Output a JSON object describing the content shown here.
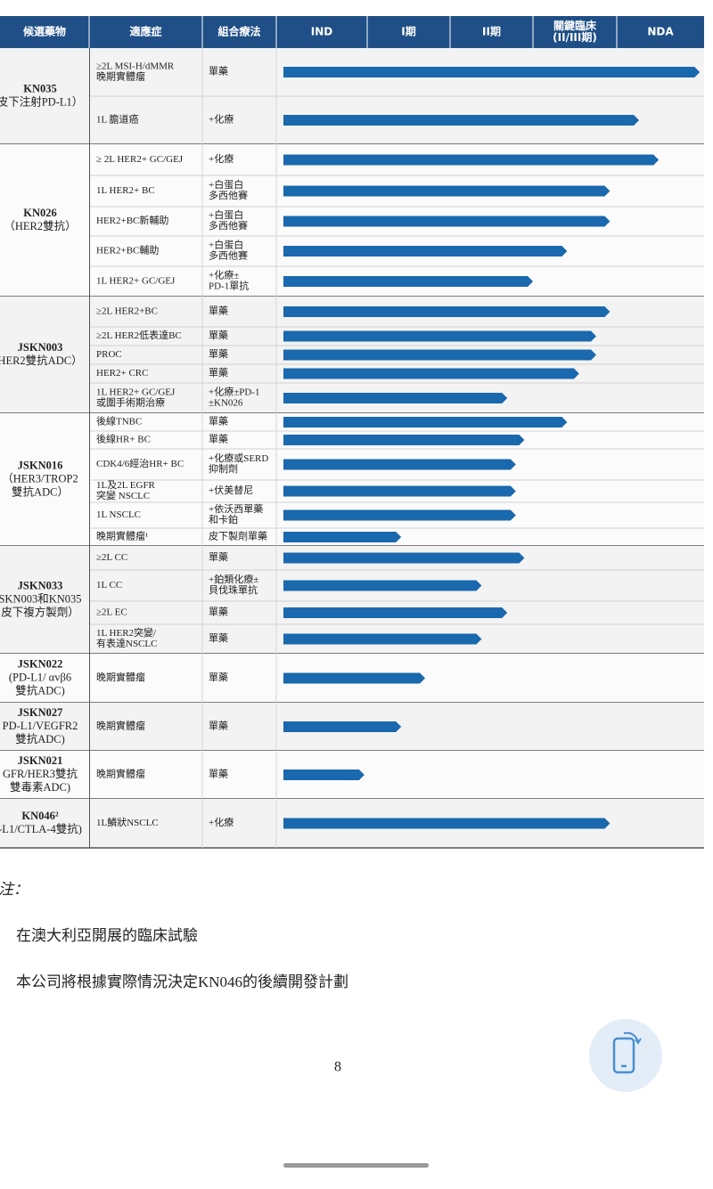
{
  "header": {
    "columns": [
      [
        "候選藥物"
      ],
      [
        "適應症"
      ],
      [
        "組合療法"
      ],
      [
        "IND"
      ],
      [
        "I期"
      ],
      [
        "II期"
      ],
      [
        "關鍵臨床",
        "(II/III期)"
      ],
      [
        "NDA"
      ]
    ]
  },
  "groups": [
    {
      "drug": [
        "KN035",
        "皮下注射PD-L1）"
      ],
      "rows": [
        {
          "indication": [
            "≥2L MSI-H/dMMR",
            "晚期實體瘤"
          ],
          "therapy": [
            "單藥"
          ],
          "progress": 4.95
        },
        {
          "indication": [
            "1L 膽道癌"
          ],
          "therapy": [
            "+化療"
          ],
          "progress": 4.24
        }
      ]
    },
    {
      "drug": [
        "KN026",
        "（HER2雙抗）"
      ],
      "rows": [
        {
          "indication": [
            "≥ 2L HER2+ GC/GEJ"
          ],
          "therapy": [
            "+化療"
          ],
          "progress": 4.47
        },
        {
          "indication": [
            "1L HER2+ BC"
          ],
          "therapy": [
            "+白蛋白",
            "多西他賽"
          ],
          "progress": 3.9
        },
        {
          "indication": [
            "HER2+BC新輔助"
          ],
          "therapy": [
            "+白蛋白",
            "多西他賽"
          ],
          "progress": 3.9
        },
        {
          "indication": [
            "HER2+BC輔助"
          ],
          "therapy": [
            "+白蛋白",
            "多西他賽"
          ],
          "progress": 3.4
        },
        {
          "indication": [
            "1L HER2+ GC/GEJ"
          ],
          "therapy": [
            "+化療±",
            "PD-1單抗"
          ],
          "progress": 3.0
        }
      ]
    },
    {
      "drug": [
        "JSKN003",
        "HER2雙抗ADC）"
      ],
      "rows": [
        {
          "indication": [
            "≥2L HER2+BC"
          ],
          "therapy": [
            "單藥"
          ],
          "progress": 3.9
        },
        {
          "indication": [
            "≥2L HER2低表達BC"
          ],
          "therapy": [
            "單藥"
          ],
          "progress": 3.74
        },
        {
          "indication": [
            "PROC"
          ],
          "therapy": [
            "單藥"
          ],
          "progress": 3.74
        },
        {
          "indication": [
            "HER2+ CRC"
          ],
          "therapy": [
            "單藥"
          ],
          "progress": 3.54
        },
        {
          "indication": [
            "1L HER2+ GC/GEJ",
            "或圍手術期治療"
          ],
          "therapy": [
            "+化療±PD-1",
            "±KN026"
          ],
          "progress": 2.7
        }
      ]
    },
    {
      "drug": [
        "JSKN016",
        "（HER3/TROP2",
        "雙抗ADC）"
      ],
      "rows": [
        {
          "indication": [
            "後線TNBC"
          ],
          "therapy": [
            "單藥"
          ],
          "progress": 3.4
        },
        {
          "indication": [
            "後線HR+ BC"
          ],
          "therapy": [
            "單藥"
          ],
          "progress": 2.9
        },
        {
          "indication": [
            "CDK4/6經治HR+ BC"
          ],
          "therapy": [
            "+化療或SERD",
            "抑制劑"
          ],
          "progress": 2.8
        },
        {
          "indication": [
            "1L及2L EGFR",
            "突變 NSCLC"
          ],
          "therapy": [
            "+伏美替尼"
          ],
          "progress": 2.8
        },
        {
          "indication": [
            "1L NSCLC"
          ],
          "therapy": [
            "+依沃西單藥",
            "和卡鉑"
          ],
          "progress": 2.8
        },
        {
          "indication": [
            "晚期實體瘤¹"
          ],
          "therapy": [
            "皮下製劑單藥"
          ],
          "progress": 1.46
        }
      ]
    },
    {
      "drug": [
        "JSKN033",
        "SKN003和KN035",
        "皮下複方製劑）"
      ],
      "rows": [
        {
          "indication": [
            "≥2L CC"
          ],
          "therapy": [
            "單藥"
          ],
          "progress": 2.9
        },
        {
          "indication": [
            "1L CC"
          ],
          "therapy": [
            "+鉑類化療±",
            "貝伐珠單抗"
          ],
          "progress": 2.4
        },
        {
          "indication": [
            "≥2L EC"
          ],
          "therapy": [
            "單藥"
          ],
          "progress": 2.7
        },
        {
          "indication": [
            "1L HER2突變/",
            "有表達NSCLC"
          ],
          "therapy": [
            "單藥"
          ],
          "progress": 2.4
        }
      ]
    },
    {
      "drug": [
        "JSKN022",
        "(PD-L1/ αvβ6",
        "雙抗ADC)"
      ],
      "rows": [
        {
          "indication": [
            "晚期實體瘤"
          ],
          "therapy": [
            "單藥"
          ],
          "progress": 1.74
        }
      ]
    },
    {
      "drug": [
        "JSKN027",
        "PD-L1/VEGFR2",
        "雙抗ADC)"
      ],
      "rows": [
        {
          "indication": [
            "晚期實體瘤"
          ],
          "therapy": [
            "單藥"
          ],
          "progress": 1.46
        }
      ]
    },
    {
      "drug": [
        "JSKN021",
        "GFR/HER3雙抗",
        "雙毒素ADC)"
      ],
      "rows": [
        {
          "indication": [
            "晚期實體瘤"
          ],
          "therapy": [
            "單藥"
          ],
          "progress": 1.03
        }
      ]
    },
    {
      "drug": [
        "KN046²",
        "-L1/CTLA-4雙抗)"
      ],
      "rows": [
        {
          "indication": [
            "1L鱗狀NSCLC"
          ],
          "therapy": [
            "+化療"
          ],
          "progress": 3.9
        }
      ]
    }
  ],
  "notes": {
    "title": "注：",
    "items": [
      "在澳大利亞開展的臨床試驗",
      "本公司將根據實際情況決定KN046的後續開發計劃"
    ]
  },
  "page_number": "8"
}
